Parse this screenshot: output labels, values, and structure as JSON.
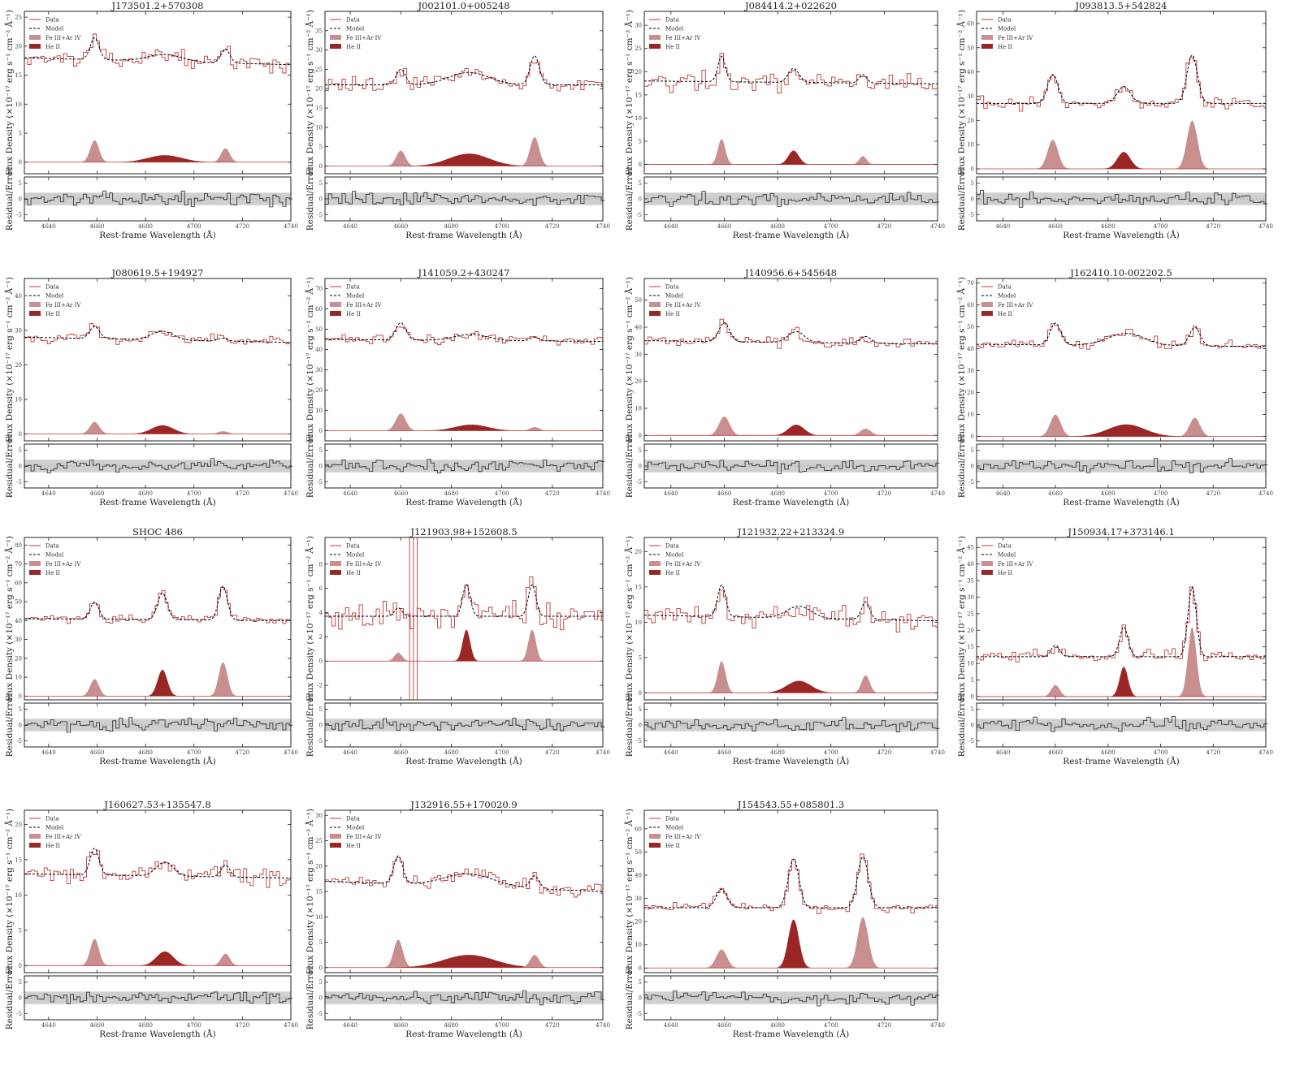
{
  "figure": {
    "shared": {
      "xlabel": "Rest-frame Wavelength (Å)",
      "ylabel_top": "Flux Density (×10⁻¹⁷ erg s⁻¹ cm⁻² Å⁻¹)",
      "ylabel_bottom": "Residual/Error",
      "legend": [
        "Data",
        "Model",
        "Fe III+Ar IV",
        "He II"
      ],
      "residual_yticks": [
        -5,
        0,
        5
      ],
      "residual_ylim": [
        -7,
        7
      ],
      "residual_band": [
        -2,
        2
      ]
    },
    "colors": {
      "data": "#c0393b",
      "model": "#000000",
      "fe_fill": "#c98f8f",
      "he_fill": "#9b2626",
      "band": "#cfcfcf"
    },
    "row_tops": [
      14,
      343,
      662,
      998
    ],
    "col_lefts": [
      30,
      400,
      793,
      1202
    ],
    "col_widths": [
      328,
      342,
      361,
      356
    ]
  },
  "chart_data": [
    {
      "type": "line",
      "title": "J173501.2+570308",
      "xlim": [
        4630,
        4740
      ],
      "xticks": [
        4640,
        4660,
        4680,
        4700,
        4720,
        4740
      ],
      "ylim": [
        -2,
        26
      ],
      "yticks": [
        0,
        5,
        10,
        15,
        20,
        25
      ],
      "continuum": 18,
      "slope": -1.2,
      "peaks": [
        {
          "x": 4659,
          "amp": 3.8,
          "w": 1.8,
          "c": "fe"
        },
        {
          "x": 4688,
          "amp": 1.2,
          "w": 7,
          "c": "he"
        },
        {
          "x": 4713,
          "amp": 2.4,
          "w": 1.8,
          "c": "fe"
        }
      ],
      "noise": 0.6
    },
    {
      "type": "line",
      "title": "J002101.0+005248",
      "xlim": [
        4630,
        4740
      ],
      "xticks": [
        4640,
        4660,
        4680,
        4700,
        4720,
        4740
      ],
      "ylim": [
        -2,
        40
      ],
      "yticks": [
        0,
        5,
        10,
        15,
        20,
        25,
        30,
        35
      ],
      "continuum": 21,
      "slope": 0,
      "peaks": [
        {
          "x": 4660,
          "amp": 4,
          "w": 1.8,
          "c": "fe"
        },
        {
          "x": 4687,
          "amp": 3.2,
          "w": 8,
          "c": "he"
        },
        {
          "x": 4713,
          "amp": 7.5,
          "w": 1.8,
          "c": "fe"
        }
      ],
      "noise": 0.9
    },
    {
      "type": "line",
      "title": "J084414.2+022620",
      "xlim": [
        4630,
        4740
      ],
      "xticks": [
        4640,
        4660,
        4680,
        4700,
        4720,
        4740
      ],
      "ylim": [
        -2,
        33
      ],
      "yticks": [
        0,
        5,
        10,
        15,
        20,
        25,
        30
      ],
      "continuum": 18,
      "slope": -0.6,
      "peaks": [
        {
          "x": 4659,
          "amp": 5.5,
          "w": 1.4,
          "c": "fe"
        },
        {
          "x": 4686,
          "amp": 3,
          "w": 2,
          "c": "he"
        },
        {
          "x": 4712,
          "amp": 1.8,
          "w": 1.4,
          "c": "fe"
        }
      ],
      "noise": 1
    },
    {
      "type": "line",
      "title": "J093813.5+542824",
      "xlim": [
        4630,
        4740
      ],
      "xticks": [
        4640,
        4660,
        4680,
        4700,
        4720,
        4740
      ],
      "ylim": [
        -2,
        65
      ],
      "yticks": [
        0,
        10,
        20,
        30,
        40,
        50,
        60
      ],
      "continuum": 27,
      "slope": 0,
      "peaks": [
        {
          "x": 4659,
          "amp": 12,
          "w": 2,
          "c": "fe"
        },
        {
          "x": 4686,
          "amp": 7,
          "w": 2.5,
          "c": "he"
        },
        {
          "x": 4712,
          "amp": 20,
          "w": 2,
          "c": "fe"
        }
      ],
      "noise": 1.2
    },
    {
      "type": "line",
      "title": "J080619.5+194927",
      "xlim": [
        4630,
        4740
      ],
      "xticks": [
        4640,
        4660,
        4680,
        4700,
        4720,
        4740
      ],
      "ylim": [
        -2,
        45
      ],
      "yticks": [
        0,
        10,
        20,
        30,
        40
      ],
      "continuum": 28,
      "slope": -1.5,
      "peaks": [
        {
          "x": 4659,
          "amp": 3.5,
          "w": 2,
          "c": "fe"
        },
        {
          "x": 4687,
          "amp": 2.5,
          "w": 4.5,
          "c": "he"
        },
        {
          "x": 4712,
          "amp": 0.8,
          "w": 2,
          "c": "fe"
        }
      ],
      "noise": 0.8
    },
    {
      "type": "line",
      "title": "J141059.2+430247",
      "xlim": [
        4630,
        4740
      ],
      "xticks": [
        4640,
        4660,
        4680,
        4700,
        4720,
        4740
      ],
      "ylim": [
        -5,
        75
      ],
      "yticks": [
        0,
        10,
        20,
        30,
        40,
        50,
        60,
        70
      ],
      "continuum": 45,
      "slope": -1,
      "peaks": [
        {
          "x": 4660,
          "amp": 8.5,
          "w": 2,
          "c": "fe"
        },
        {
          "x": 4688,
          "amp": 3,
          "w": 6.5,
          "c": "he"
        },
        {
          "x": 4713,
          "amp": 1.8,
          "w": 1.8,
          "c": "fe"
        }
      ],
      "noise": 1.2
    },
    {
      "type": "line",
      "title": "J140956.6+545648",
      "xlim": [
        4630,
        4740
      ],
      "xticks": [
        4640,
        4660,
        4680,
        4700,
        4720,
        4740
      ],
      "ylim": [
        -2,
        58
      ],
      "yticks": [
        0,
        10,
        20,
        30,
        40,
        50
      ],
      "continuum": 35,
      "slope": -1.2,
      "peaks": [
        {
          "x": 4660,
          "amp": 7,
          "w": 2,
          "c": "fe"
        },
        {
          "x": 4687,
          "amp": 4,
          "w": 3,
          "c": "he"
        },
        {
          "x": 4713,
          "amp": 2.5,
          "w": 2,
          "c": "fe"
        }
      ],
      "noise": 1.1
    },
    {
      "type": "line",
      "title": "J162410.10-002202.5",
      "xlim": [
        4630,
        4740
      ],
      "xticks": [
        4640,
        4660,
        4680,
        4700,
        4720,
        4740
      ],
      "ylim": [
        -2,
        72
      ],
      "yticks": [
        0,
        10,
        20,
        30,
        40,
        50,
        60,
        70
      ],
      "continuum": 42,
      "slope": -1,
      "peaks": [
        {
          "x": 4660,
          "amp": 10,
          "w": 2,
          "c": "fe"
        },
        {
          "x": 4687,
          "amp": 5.5,
          "w": 7,
          "c": "he"
        },
        {
          "x": 4713,
          "amp": 8.5,
          "w": 2,
          "c": "fe"
        }
      ],
      "noise": 1.2
    },
    {
      "type": "line",
      "title": "SHOC 486",
      "xlim": [
        4630,
        4740
      ],
      "xticks": [
        4640,
        4660,
        4680,
        4700,
        4720,
        4740
      ],
      "ylim": [
        -2,
        84
      ],
      "yticks": [
        0,
        10,
        20,
        30,
        40,
        50,
        60,
        70,
        80
      ],
      "continuum": 41,
      "slope": -1,
      "peaks": [
        {
          "x": 4659,
          "amp": 9,
          "w": 1.8,
          "c": "fe"
        },
        {
          "x": 4687,
          "amp": 14,
          "w": 2,
          "c": "he"
        },
        {
          "x": 4712,
          "amp": 18,
          "w": 1.8,
          "c": "fe"
        }
      ],
      "noise": 1
    },
    {
      "type": "line",
      "title": "J121903.98+152608.5",
      "xlim": [
        4630,
        4740
      ],
      "xticks": [
        4640,
        4660,
        4680,
        4700,
        4720,
        4740
      ],
      "ylim": [
        -3.2,
        10.2
      ],
      "yticks": [
        -2,
        0,
        2,
        4,
        6,
        8
      ],
      "continuum": 3.7,
      "slope": 0,
      "peaks": [
        {
          "x": 4659,
          "amp": 0.7,
          "w": 1.5,
          "c": "fe"
        },
        {
          "x": 4686,
          "amp": 2.6,
          "w": 1.5,
          "c": "he"
        },
        {
          "x": 4712,
          "amp": 2.6,
          "w": 1.5,
          "c": "fe"
        }
      ],
      "noise": 0.6,
      "spike": 4665
    },
    {
      "type": "line",
      "title": "J121932.22+213324.9",
      "xlim": [
        4630,
        4740
      ],
      "xticks": [
        4640,
        4660,
        4680,
        4700,
        4720,
        4740
      ],
      "ylim": [
        -1,
        22
      ],
      "yticks": [
        0,
        5,
        10,
        15,
        20
      ],
      "continuum": 11,
      "slope": -0.8,
      "peaks": [
        {
          "x": 4659,
          "amp": 4.5,
          "w": 1.5,
          "c": "fe"
        },
        {
          "x": 4688,
          "amp": 1.7,
          "w": 4.5,
          "c": "he"
        },
        {
          "x": 4713,
          "amp": 2.5,
          "w": 1.5,
          "c": "fe"
        }
      ],
      "noise": 0.8
    },
    {
      "type": "line",
      "title": "J150934.17+373146.1",
      "xlim": [
        4630,
        4740
      ],
      "xticks": [
        4640,
        4660,
        4680,
        4700,
        4720,
        4740
      ],
      "ylim": [
        -1,
        48
      ],
      "yticks": [
        0,
        5,
        10,
        15,
        20,
        25,
        30,
        35,
        40,
        45
      ],
      "continuum": 12,
      "slope": 0,
      "peaks": [
        {
          "x": 4660,
          "amp": 3.5,
          "w": 1.6,
          "c": "fe"
        },
        {
          "x": 4686,
          "amp": 9,
          "w": 1.6,
          "c": "he"
        },
        {
          "x": 4712,
          "amp": 21,
          "w": 1.6,
          "c": "fe"
        }
      ],
      "noise": 0.9
    },
    {
      "type": "line",
      "title": "J160627.53+135547.8",
      "xlim": [
        4630,
        4740
      ],
      "xticks": [
        4640,
        4660,
        4680,
        4700,
        4720,
        4740
      ],
      "ylim": [
        -1,
        22
      ],
      "yticks": [
        0,
        5,
        10,
        15,
        20
      ],
      "continuum": 13,
      "slope": -0.6,
      "peaks": [
        {
          "x": 4659,
          "amp": 3.8,
          "w": 1.8,
          "c": "fe"
        },
        {
          "x": 4688,
          "amp": 2,
          "w": 3.5,
          "c": "he"
        },
        {
          "x": 4713,
          "amp": 1.7,
          "w": 1.8,
          "c": "fe"
        }
      ],
      "noise": 0.7
    },
    {
      "type": "line",
      "title": "J132916.55+170020.9",
      "xlim": [
        4630,
        4740
      ],
      "xticks": [
        4640,
        4660,
        4680,
        4700,
        4720,
        4740
      ],
      "ylim": [
        -1,
        31
      ],
      "yticks": [
        0,
        5,
        10,
        15,
        20,
        25,
        30
      ],
      "continuum": 17,
      "slope": -2,
      "peaks": [
        {
          "x": 4659,
          "amp": 5.5,
          "w": 1.8,
          "c": "fe"
        },
        {
          "x": 4687,
          "amp": 2.5,
          "w": 10,
          "c": "he"
        },
        {
          "x": 4713,
          "amp": 2.5,
          "w": 1.8,
          "c": "fe"
        }
      ],
      "noise": 0.7
    },
    {
      "type": "line",
      "title": "J154543.55+085801.3",
      "xlim": [
        4630,
        4740
      ],
      "xticks": [
        4640,
        4660,
        4680,
        4700,
        4720,
        4740
      ],
      "ylim": [
        -2,
        68
      ],
      "yticks": [
        0,
        10,
        20,
        30,
        40,
        50,
        60
      ],
      "continuum": 26,
      "slope": 0,
      "peaks": [
        {
          "x": 4659,
          "amp": 8,
          "w": 2,
          "c": "fe"
        },
        {
          "x": 4686,
          "amp": 21,
          "w": 2,
          "c": "he"
        },
        {
          "x": 4712,
          "amp": 22,
          "w": 2,
          "c": "fe"
        }
      ],
      "noise": 1
    }
  ]
}
